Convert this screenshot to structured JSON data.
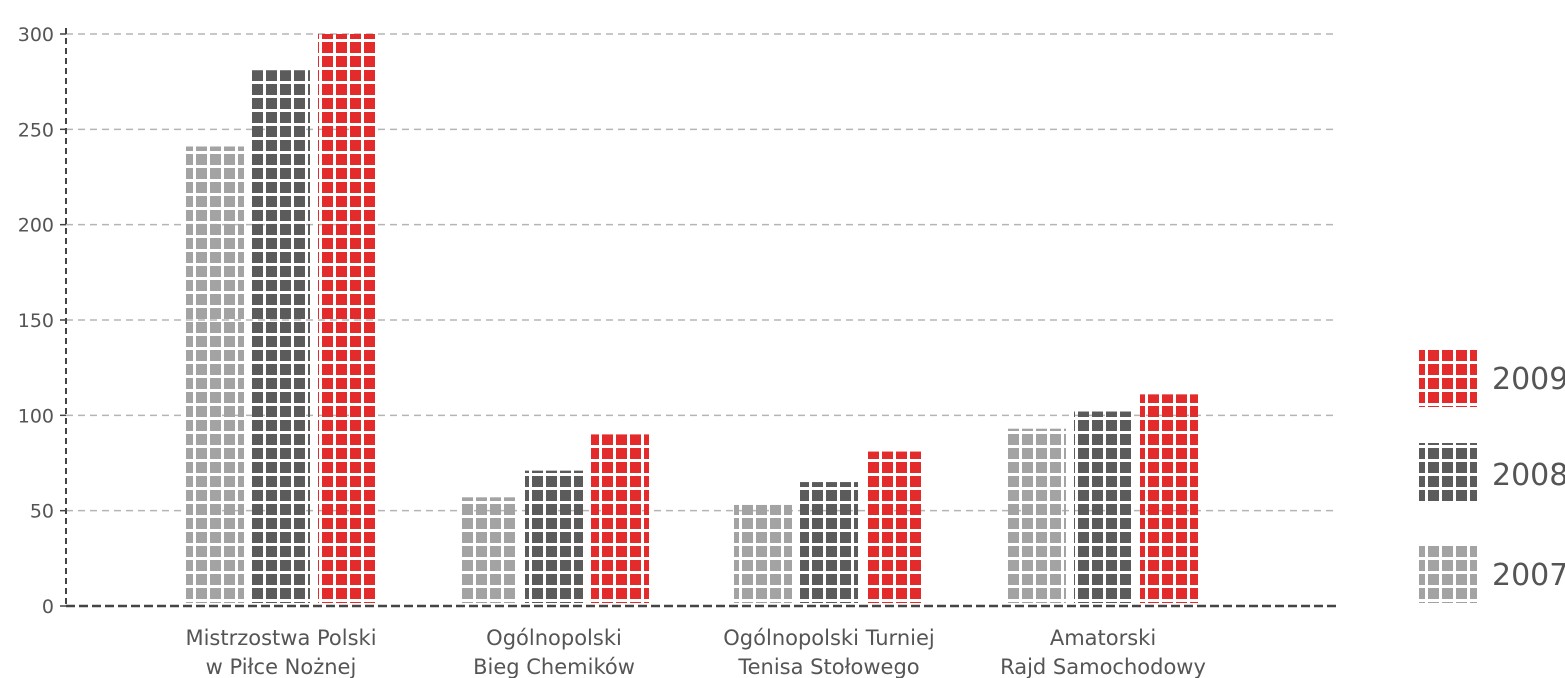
{
  "chart_data": {
    "type": "bar",
    "categories": [
      [
        "Mistrzostwa Polski",
        "w Piłce Nożnej"
      ],
      [
        "Ogólnopolski",
        "Bieg Chemików"
      ],
      [
        "Ogólnopolski Turniej",
        "Tenisa Stołowego"
      ],
      [
        "Amatorski",
        "Rajd Samochodowy"
      ]
    ],
    "series": [
      {
        "name": "2007",
        "values": [
          241,
          57,
          53,
          93
        ]
      },
      {
        "name": "2008",
        "values": [
          281,
          71,
          65,
          102
        ]
      },
      {
        "name": "2009",
        "values": [
          300,
          90,
          81,
          111
        ]
      }
    ],
    "legend_order": [
      "2009",
      "2008",
      "2007"
    ],
    "ylim": [
      0,
      300
    ],
    "yticks": [
      0,
      50,
      100,
      150,
      200,
      250,
      300
    ],
    "grid": true,
    "legend_position": "right",
    "colors": {
      "2007": "#a3a3a3",
      "2008": "#5b5b5b",
      "2009": "#e32b2b"
    },
    "style": "pictogram-blocks"
  }
}
